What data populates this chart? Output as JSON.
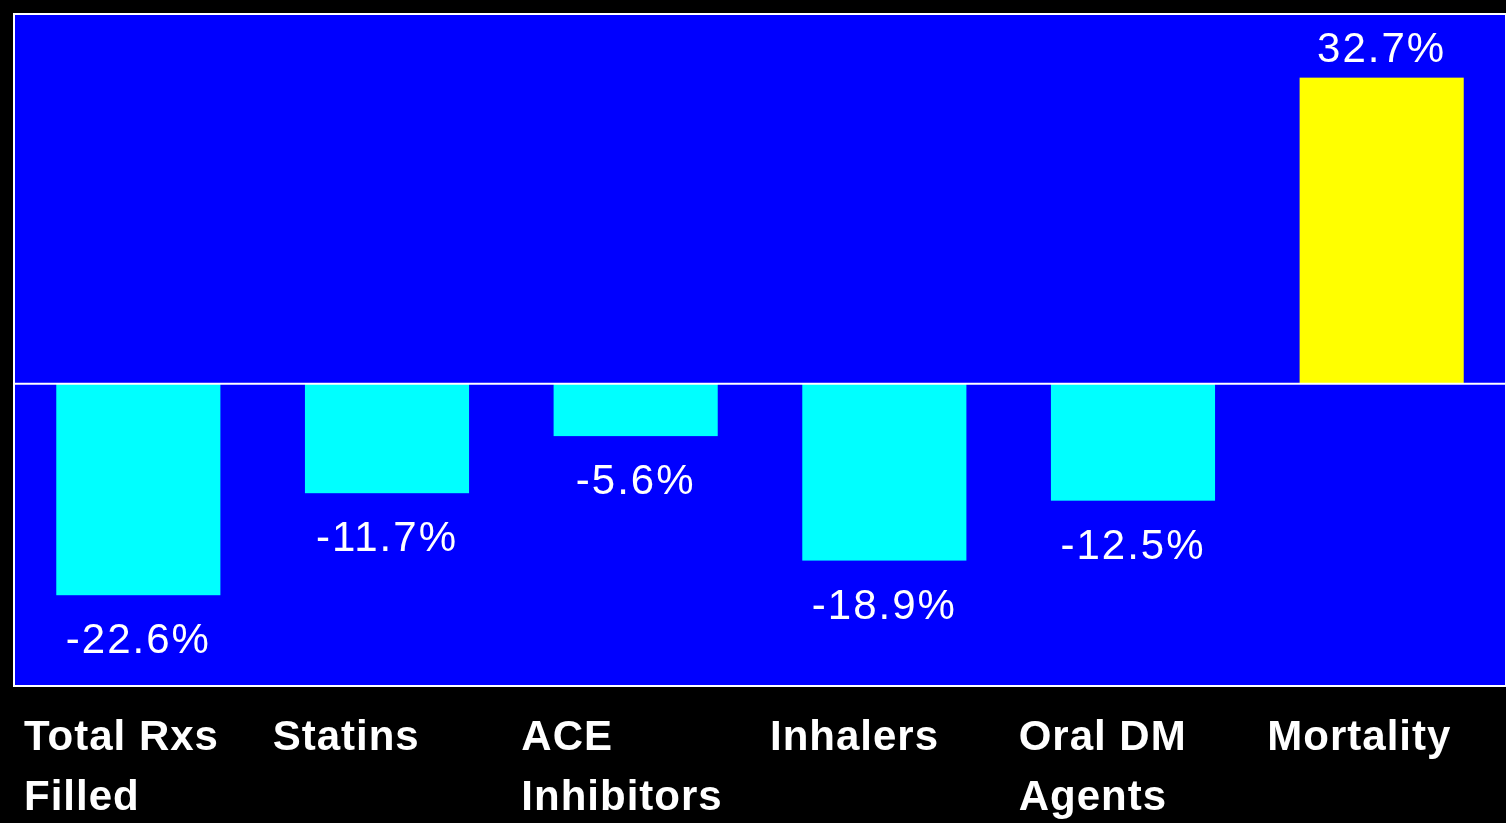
{
  "chart_data": {
    "type": "bar",
    "categories": [
      "Total Rxs Filled",
      "Statins",
      "ACE Inhibitors",
      "Inhalers",
      "Oral DM Agents",
      "Mortality"
    ],
    "values": [
      -22.6,
      -11.7,
      -5.6,
      -18.9,
      -12.5,
      32.7
    ],
    "colors": [
      "#00ffff",
      "#00ffff",
      "#00ffff",
      "#00ffff",
      "#00ffff",
      "#ffff00"
    ],
    "value_labels": [
      "-22.6%",
      "-11.7%",
      "-5.6%",
      "-18.9%",
      "-12.5%",
      "32.7%"
    ],
    "ylim": [
      -32.3,
      39.5
    ]
  }
}
